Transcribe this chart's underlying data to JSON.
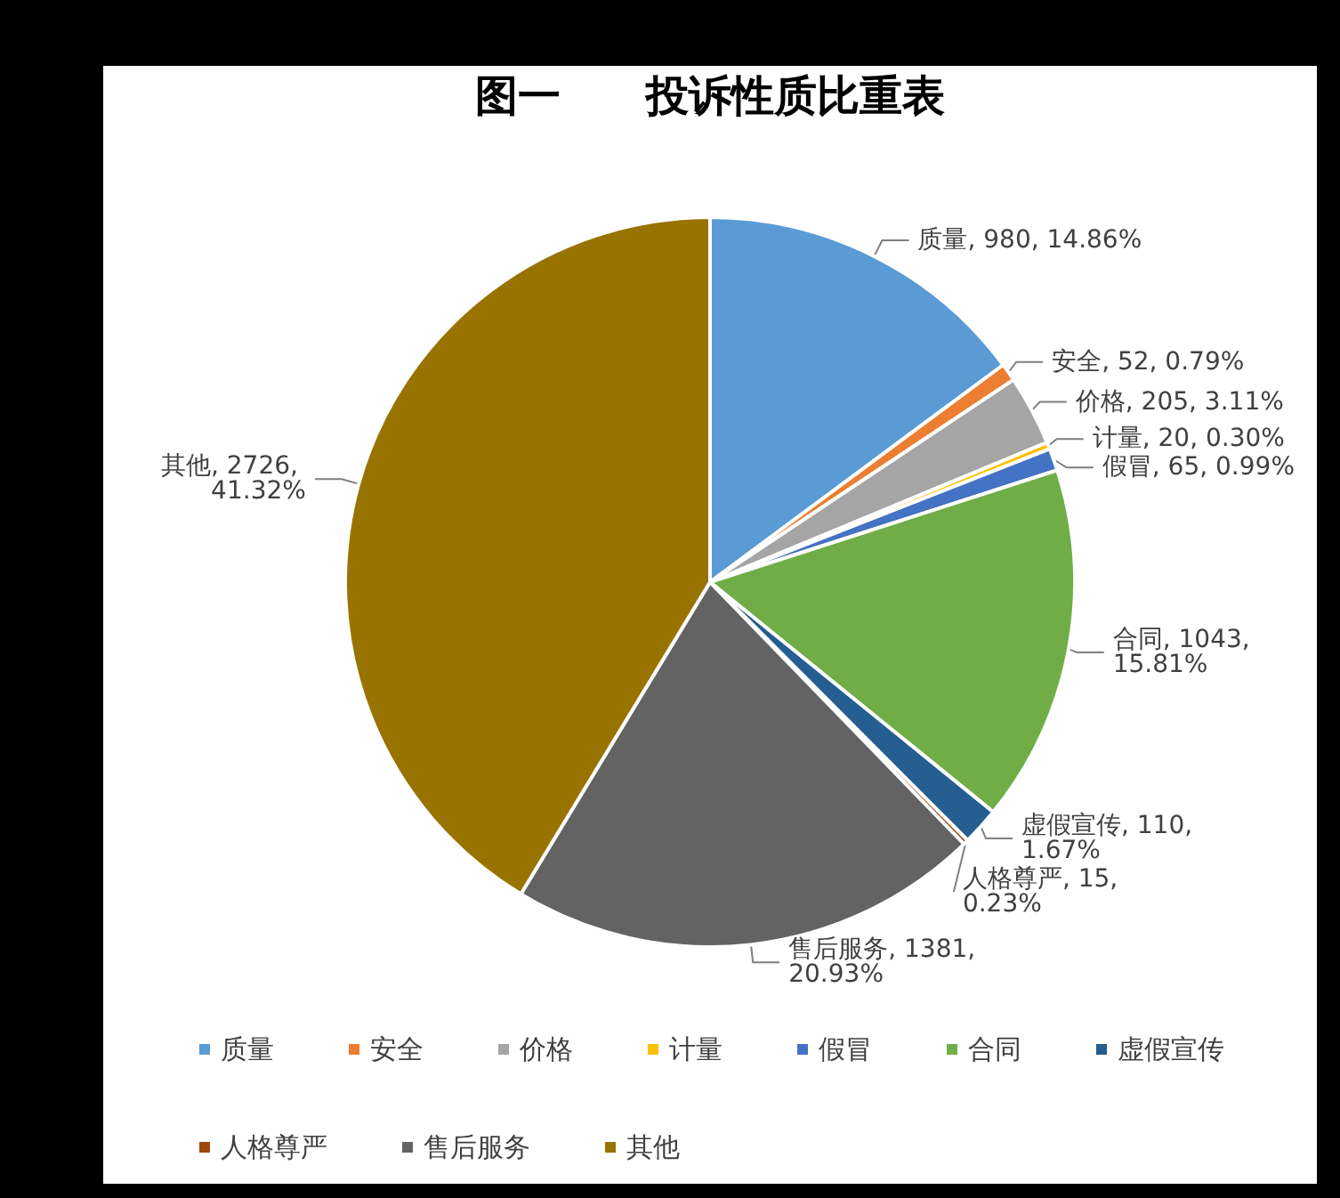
{
  "chart_data": {
    "type": "pie",
    "title": "图一　　投诉性质比重表",
    "categories": [
      "质量",
      "安全",
      "价格",
      "计量",
      "假冒",
      "合同",
      "虚假宣传",
      "人格尊严",
      "售后服务",
      "其他"
    ],
    "values": [
      980,
      52,
      205,
      20,
      65,
      1043,
      110,
      15,
      1381,
      2726
    ],
    "value_labels": [
      "质量, 980, 14.86%",
      "安全, 52, 0.79%",
      "价格, 205, 3.11%",
      "计量, 20, 0.30%",
      "假冒, 65, 0.99%",
      "合同, 1043, 15.81%",
      "虚假宣传, 110, 1.67%",
      "人格尊严, 15, 0.23%",
      "售后服务, 1381, 20.93%",
      "其他, 2726, 41.32%"
    ],
    "colors": [
      "#5b9bd5",
      "#ed7d31",
      "#a5a5a5",
      "#ffc000",
      "#4472c4",
      "#70ad47",
      "#255e91",
      "#9e480e",
      "#636363",
      "#997300"
    ],
    "legend": "bottom"
  }
}
